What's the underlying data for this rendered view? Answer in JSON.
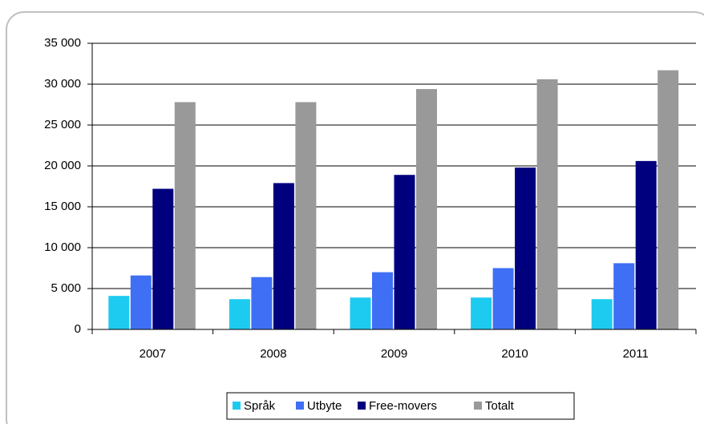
{
  "chart_data": {
    "type": "bar",
    "categories": [
      "2007",
      "2008",
      "2009",
      "2010",
      "2011"
    ],
    "series": [
      {
        "name": "Språk",
        "color": "#1ecbf0",
        "values": [
          4100,
          3700,
          3900,
          3900,
          3700
        ]
      },
      {
        "name": "Utbyte",
        "color": "#3f6ff5",
        "values": [
          6600,
          6400,
          7000,
          7500,
          8100
        ]
      },
      {
        "name": "Free-movers",
        "color": "#00007f",
        "values": [
          17200,
          17900,
          18900,
          19800,
          20600
        ]
      },
      {
        "name": "Totalt",
        "color": "#999999",
        "values": [
          27800,
          27800,
          29400,
          30600,
          31700
        ]
      }
    ],
    "ylim": [
      0,
      35000
    ],
    "yticks": [
      0,
      {
        "value": 5000,
        "label": "5 000"
      },
      {
        "value": 10000,
        "label": "10 000"
      },
      {
        "value": 15000,
        "label": "15 000"
      },
      {
        "value": 20000,
        "label": "20 000"
      },
      {
        "value": 25000,
        "label": "25 000"
      },
      {
        "value": 30000,
        "label": "30 000"
      },
      {
        "value": 35000,
        "label": "35 000"
      }
    ],
    "grid": true,
    "legend": "bottom"
  }
}
